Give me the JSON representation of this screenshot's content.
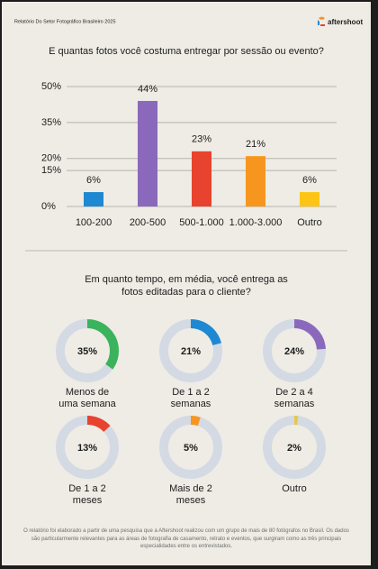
{
  "header": {
    "report": "Relatório Do Setor Fotográfico Brasileiro 2025",
    "brand": "aftershoot"
  },
  "chart_data": [
    {
      "type": "bar",
      "title": "E quantas fotos você costuma entregar por sessão ou evento?",
      "categories": [
        "100-200",
        "200-500",
        "500-1.000",
        "1.000-3.000",
        "Outro"
      ],
      "values": [
        6,
        44,
        23,
        21,
        6
      ],
      "value_labels": [
        "6%",
        "44%",
        "23%",
        "21%",
        "6%"
      ],
      "colors": [
        "#1f88d2",
        "#8a69bd",
        "#e8432e",
        "#f7961f",
        "#fcc515"
      ],
      "ylim": [
        0,
        50
      ],
      "yticks": [
        {
          "value": 0,
          "label": "0%"
        },
        {
          "value": 15,
          "label": "15%"
        },
        {
          "value": 20,
          "label": "20%"
        },
        {
          "value": 35,
          "label": "35%"
        },
        {
          "value": 50,
          "label": "50%"
        }
      ],
      "grid": true
    },
    {
      "type": "donut",
      "title": "Em quanto tempo, em média, você entrega as fotos editadas para o cliente?",
      "categories": [
        "Menos de uma semana",
        "De 1 a 2 semanas",
        "De 2 a 4 semanas",
        "De 1 a 2 meses",
        "Mais de 2 meses",
        "Outro"
      ],
      "values": [
        35,
        21,
        24,
        13,
        5,
        2
      ],
      "value_labels": [
        "35%",
        "21%",
        "24%",
        "13%",
        "5%",
        "2%"
      ],
      "colors": [
        "#3bb35c",
        "#1f88d2",
        "#8a69bd",
        "#e8432e",
        "#f7961f",
        "#e6c84a"
      ],
      "track_color": "#d4dae3"
    }
  ],
  "footnote": "O relatório foi elaborado a partir de uma pesquisa que a Aftershoot realizou com um grupo de mais de 80 fotógrafos no Brasil. Os dados são particularmente relevantes para as áreas de fotografia de casamento, retrato e eventos, que surgiram como as três principais especialidades entre os entrevistados."
}
